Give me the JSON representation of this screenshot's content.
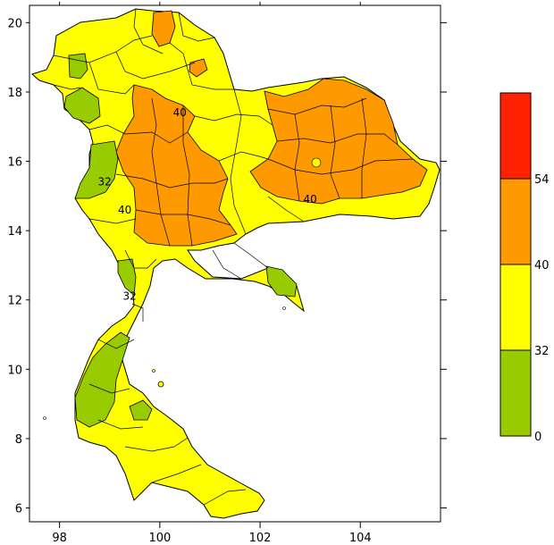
{
  "chart_data": {
    "type": "heatmap",
    "title": "",
    "xlabel": "",
    "ylabel": "",
    "x_ticks": [
      98,
      100,
      102,
      104
    ],
    "y_ticks": [
      6,
      8,
      10,
      12,
      14,
      16,
      18,
      20
    ],
    "xlim": [
      97.4,
      105.6
    ],
    "ylim": [
      5.6,
      20.5
    ],
    "grid": false,
    "legend": {
      "placement": "right",
      "boundaries": [
        0,
        32,
        40,
        54
      ],
      "labels": [
        "0",
        "32",
        "40",
        "54"
      ],
      "bins": [
        {
          "range": [
            0,
            32
          ],
          "color": "#99cc00"
        },
        {
          "range": [
            32,
            40
          ],
          "color": "#ffff00"
        },
        {
          "range": [
            40,
            54
          ],
          "color": "#ff9900"
        },
        {
          "range": [
            54,
            null
          ],
          "color": "#ff2200"
        }
      ]
    },
    "contour_labels": [
      {
        "text": "40",
        "lon": 100.4,
        "lat": 17.3
      },
      {
        "text": "40",
        "lon": 99.3,
        "lat": 14.5
      },
      {
        "text": "40",
        "lon": 103.0,
        "lat": 14.8
      },
      {
        "text": "32",
        "lon": 98.9,
        "lat": 15.3
      },
      {
        "text": "32",
        "lon": 99.4,
        "lat": 12.0
      }
    ]
  },
  "colors": {
    "low": "#99cc00",
    "mid": "#ffff00",
    "high": "#ff9900",
    "extreme": "#ff2200",
    "border": "#000000"
  }
}
